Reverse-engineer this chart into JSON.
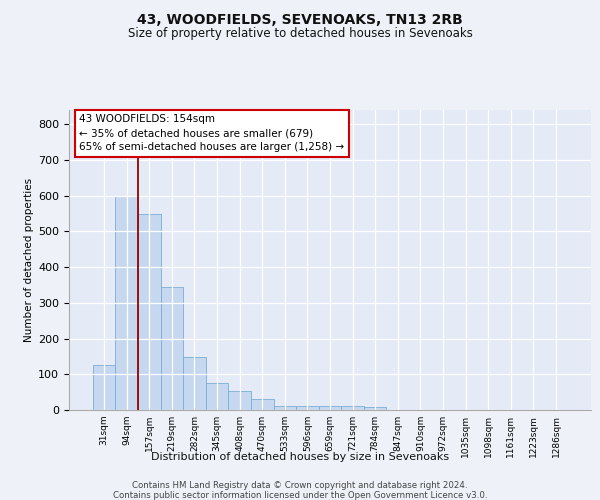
{
  "title": "43, WOODFIELDS, SEVENOAKS, TN13 2RB",
  "subtitle": "Size of property relative to detached houses in Sevenoaks",
  "xlabel": "Distribution of detached houses by size in Sevenoaks",
  "ylabel": "Number of detached properties",
  "categories": [
    "31sqm",
    "94sqm",
    "157sqm",
    "219sqm",
    "282sqm",
    "345sqm",
    "408sqm",
    "470sqm",
    "533sqm",
    "596sqm",
    "659sqm",
    "721sqm",
    "784sqm",
    "847sqm",
    "910sqm",
    "972sqm",
    "1035sqm",
    "1098sqm",
    "1161sqm",
    "1223sqm",
    "1286sqm"
  ],
  "values": [
    125,
    600,
    550,
    345,
    148,
    75,
    53,
    30,
    12,
    10,
    10,
    10,
    8,
    0,
    0,
    0,
    0,
    0,
    0,
    0,
    0
  ],
  "bar_color": "#c5d8f0",
  "bar_edge_color": "#7aadd4",
  "marker_line_color": "#990000",
  "annotation_line1": "43 WOODFIELDS: 154sqm",
  "annotation_line2": "← 35% of detached houses are smaller (679)",
  "annotation_line3": "65% of semi-detached houses are larger (1,258) →",
  "annotation_box_facecolor": "#ffffff",
  "annotation_box_edgecolor": "#cc0000",
  "ylim": [
    0,
    840
  ],
  "yticks": [
    0,
    100,
    200,
    300,
    400,
    500,
    600,
    700,
    800
  ],
  "footer1": "Contains HM Land Registry data © Crown copyright and database right 2024.",
  "footer2": "Contains public sector information licensed under the Open Government Licence v3.0.",
  "bg_color": "#eef2f8",
  "plot_bg_color": "#e4eaf6",
  "grid_color": "#ffffff",
  "marker_bar_index": 2,
  "title_fontsize": 10,
  "subtitle_fontsize": 8.5
}
